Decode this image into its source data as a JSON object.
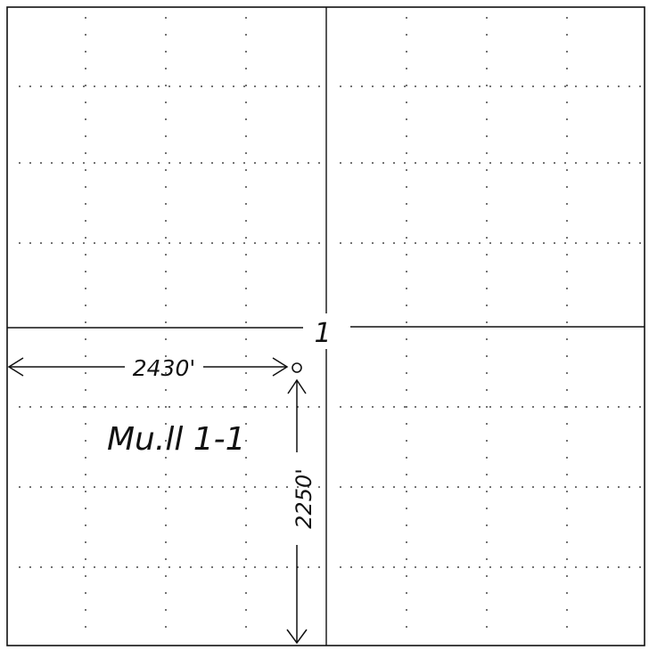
{
  "section": {
    "number": "1"
  },
  "well": {
    "name": "Mu.ll 1-1",
    "symbol": "open-circle-icon"
  },
  "dimensions": {
    "west": "2430'",
    "south": "2250'"
  },
  "grid": {
    "quarter_divisions": 4,
    "dotted": true
  },
  "colors": {
    "ink": "#111111",
    "background": "#ffffff"
  }
}
